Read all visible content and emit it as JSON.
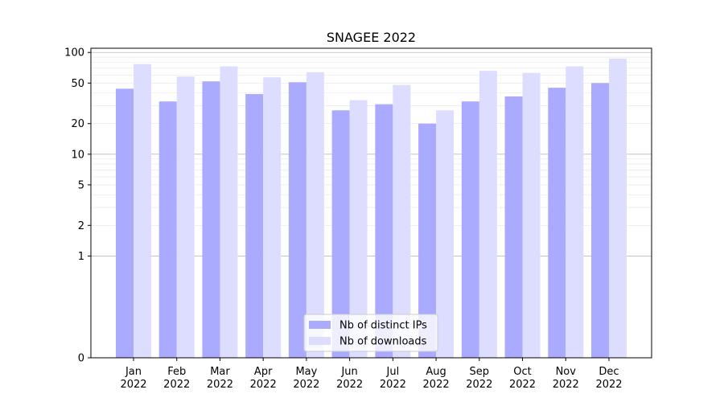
{
  "chart_data": {
    "type": "bar",
    "title": "SNAGEE 2022",
    "xlabel": "",
    "ylabel": "",
    "yscale": "symlog",
    "ylim": [
      0,
      110
    ],
    "categories": [
      "Jan\n2022",
      "Feb\n2022",
      "Mar\n2022",
      "Apr\n2022",
      "May\n2022",
      "Jun\n2022",
      "Jul\n2022",
      "Aug\n2022",
      "Sep\n2022",
      "Oct\n2022",
      "Nov\n2022",
      "Dec\n2022"
    ],
    "yticks": [
      0,
      1,
      2,
      5,
      10,
      20,
      50,
      100
    ],
    "ytick_labels": [
      "0",
      "1",
      "2",
      "5",
      "10",
      "20",
      "50",
      "100"
    ],
    "legend_position": "bottom-center",
    "grid": true,
    "series": [
      {
        "name": "Nb of distinct IPs",
        "color": "#aaaaff",
        "values": [
          44,
          33,
          52,
          39,
          51,
          27,
          31,
          20,
          33,
          37,
          45,
          50
        ]
      },
      {
        "name": "Nb of downloads",
        "color": "#ddddff",
        "values": [
          77,
          58,
          73,
          57,
          64,
          34,
          48,
          27,
          66,
          63,
          73,
          87
        ]
      }
    ]
  }
}
